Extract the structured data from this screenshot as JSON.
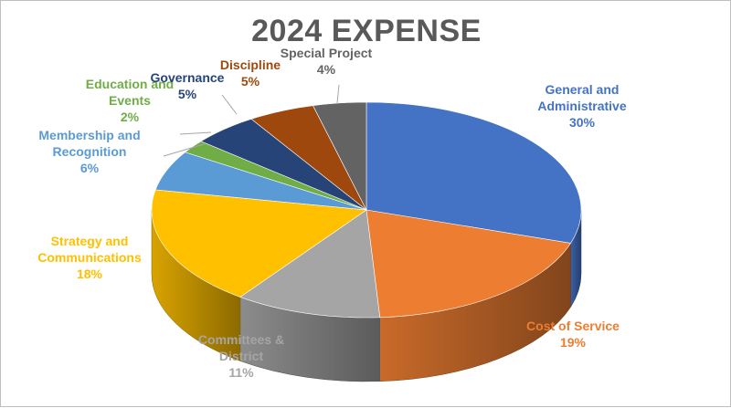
{
  "chart_data": {
    "type": "pie",
    "title": "2024 EXPENSE",
    "slices": [
      {
        "label": "General and Administrative",
        "label_lines": [
          "General and",
          "Administrative"
        ],
        "value": 30,
        "pct_label": "30%",
        "color": "#4472C4"
      },
      {
        "label": "Cost of Service",
        "label_lines": [
          "Cost of Service"
        ],
        "value": 19,
        "pct_label": "19%",
        "color": "#ED7D31"
      },
      {
        "label": "Committees & District",
        "label_lines": [
          "Committees &",
          "District"
        ],
        "value": 11,
        "pct_label": "11%",
        "color": "#A5A5A5"
      },
      {
        "label": "Strategy and Communications",
        "label_lines": [
          "Strategy and",
          "Communications"
        ],
        "value": 18,
        "pct_label": "18%",
        "color": "#FFC000"
      },
      {
        "label": "Membership and Recognition",
        "label_lines": [
          "Membership and",
          "Recognition"
        ],
        "value": 6,
        "pct_label": "6%",
        "color": "#5B9BD5"
      },
      {
        "label": "Education and Events",
        "label_lines": [
          "Education and",
          "Events"
        ],
        "value": 2,
        "pct_label": "2%",
        "color": "#70AD47"
      },
      {
        "label": "Governance",
        "label_lines": [
          "Governance"
        ],
        "value": 5,
        "pct_label": "5%",
        "color": "#264478"
      },
      {
        "label": "Discipline",
        "label_lines": [
          "Discipline"
        ],
        "value": 5,
        "pct_label": "5%",
        "color": "#9E480E"
      },
      {
        "label": "Special Project",
        "label_lines": [
          "Special Project"
        ],
        "value": 4,
        "pct_label": "4%",
        "color": "#636363"
      }
    ],
    "label_colors": {
      "General and Administrative": "#4472C4",
      "Cost of Service": "#ED7D31",
      "Committees & District": "#A5A5A5",
      "Strategy and Communications": "#FFC000",
      "Membership and Recognition": "#5B9BD5",
      "Education and Events": "#70AD47",
      "Governance": "#264478",
      "Discipline": "#9E480E",
      "Special Project": "#636363"
    },
    "style": "3d-pie"
  }
}
